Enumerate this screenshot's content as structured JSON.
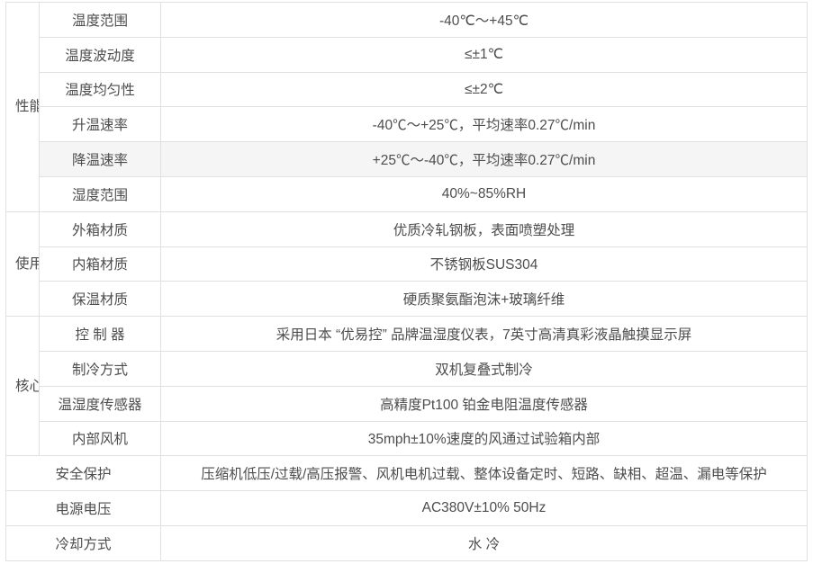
{
  "page": {
    "background_color": "#ffffff",
    "text_color": "#4d4d4d",
    "border_color": "#e0e0e0",
    "highlight_row_color": "#f5f5f5"
  },
  "table": {
    "sections": [
      {
        "group": "性能指标",
        "rows": [
          {
            "label": "温度范围",
            "value": "-40℃～+45℃"
          },
          {
            "label": "温度波动度",
            "value": "≤±1℃"
          },
          {
            "label": "温度均匀性",
            "value": "≤±2℃"
          },
          {
            "label": "升温速率",
            "value": "-40℃～+25℃，平均速率0.27℃/min"
          },
          {
            "label": "降温速率",
            "value": "+25℃～-40℃，平均速率0.27℃/min",
            "highlighted": true
          },
          {
            "label": "湿度范围",
            "value": "40%~85%RH"
          }
        ]
      },
      {
        "group": "使用材料",
        "rows": [
          {
            "label": "外箱材质",
            "value": "优质冷轧钢板，表面喷塑处理"
          },
          {
            "label": "内箱材质",
            "value": "不锈钢板SUS304"
          },
          {
            "label": "保温材质",
            "value": "硬质聚氨酯泡沫+玻璃纤维"
          }
        ]
      },
      {
        "group": "核心配置",
        "rows": [
          {
            "label": "控 制 器",
            "value": "采用日本 “优易控” 品牌温湿度仪表，7英寸高清真彩液晶触摸显示屏"
          },
          {
            "label": "制冷方式",
            "value": "双机复叠式制冷"
          },
          {
            "label": "温湿度传感器",
            "value": "高精度Pt100 铂金电阻温度传感器"
          },
          {
            "label": "内部风机",
            "value": "35mph±10%速度的风通过试验箱内部"
          }
        ]
      }
    ],
    "plain_rows": [
      {
        "label": "安全保护",
        "value": "压缩机低压/过载/高压报警、风机电机过载、整体设备定时、短路、缺相、超温、漏电等保护"
      },
      {
        "label": "电源电压",
        "value": "AC380V±10% 50Hz"
      },
      {
        "label": "冷却方式",
        "value": "水 冷"
      }
    ]
  }
}
